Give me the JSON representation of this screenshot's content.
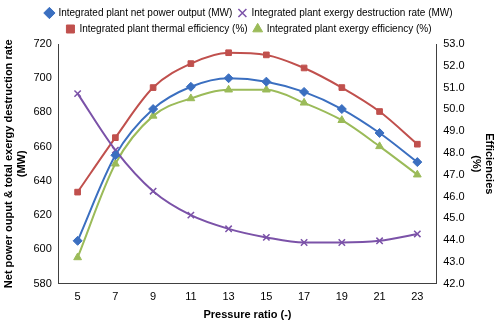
{
  "chart_data": {
    "type": "line",
    "x_label": "Pressure ratio (-)",
    "y_label": "Net power ouput & total exergy destruction rate (MW)",
    "y2_label": "Efficiencies (%)",
    "categories": [
      5,
      7,
      9,
      11,
      13,
      15,
      17,
      19,
      21,
      23
    ],
    "series": [
      {
        "name": "Integrated plant net power output (MW)",
        "color": "#3b6fc0",
        "marker": "diamond",
        "axis": "y",
        "values": [
          605,
          655,
          682,
          695,
          700,
          698,
          692,
          682,
          668,
          651
        ]
      },
      {
        "name": "Integrated plant exergy destruction rate (MW)",
        "color": "#7b52a8",
        "marker": "x",
        "axis": "y",
        "values": [
          691,
          658,
          634,
          620,
          612,
          607,
          604,
          604,
          605,
          609
        ]
      },
      {
        "name": "Integrated plant thermal efficiency (%)",
        "color": "#c0504d",
        "marker": "square",
        "axis": "y2",
        "values": [
          46.2,
          48.7,
          51.0,
          52.1,
          52.6,
          52.5,
          51.9,
          51.0,
          49.9,
          48.4
        ]
      },
      {
        "name": "Integrated plant exergy efficiency (%)",
        "color": "#9bbb59",
        "marker": "triangle",
        "axis": "y2",
        "values": [
          43.2,
          47.5,
          49.7,
          50.5,
          50.9,
          50.9,
          50.3,
          49.5,
          48.3,
          47.0
        ]
      }
    ],
    "ylim": [
      580,
      720
    ],
    "yticks": [
      580,
      600,
      620,
      640,
      660,
      680,
      700,
      720
    ],
    "y2lim": [
      42,
      53
    ],
    "y2ticks": [
      {
        "value": 42,
        "label": "42.0"
      },
      {
        "value": 43,
        "label": "43.0"
      },
      {
        "value": 44,
        "label": "44.0"
      },
      {
        "value": 45,
        "label": "45.0"
      },
      {
        "value": 46,
        "label": "46.0"
      },
      {
        "value": 47,
        "label": "47.0"
      },
      {
        "value": 48,
        "label": "48.0"
      },
      {
        "value": 49,
        "label": "49.0"
      },
      {
        "value": 50,
        "label": "50.0"
      },
      {
        "value": 51,
        "label": "51.0"
      },
      {
        "value": 52,
        "label": "52.0"
      },
      {
        "value": 53,
        "label": "53.0"
      }
    ],
    "legend": "top",
    "grid": false
  }
}
